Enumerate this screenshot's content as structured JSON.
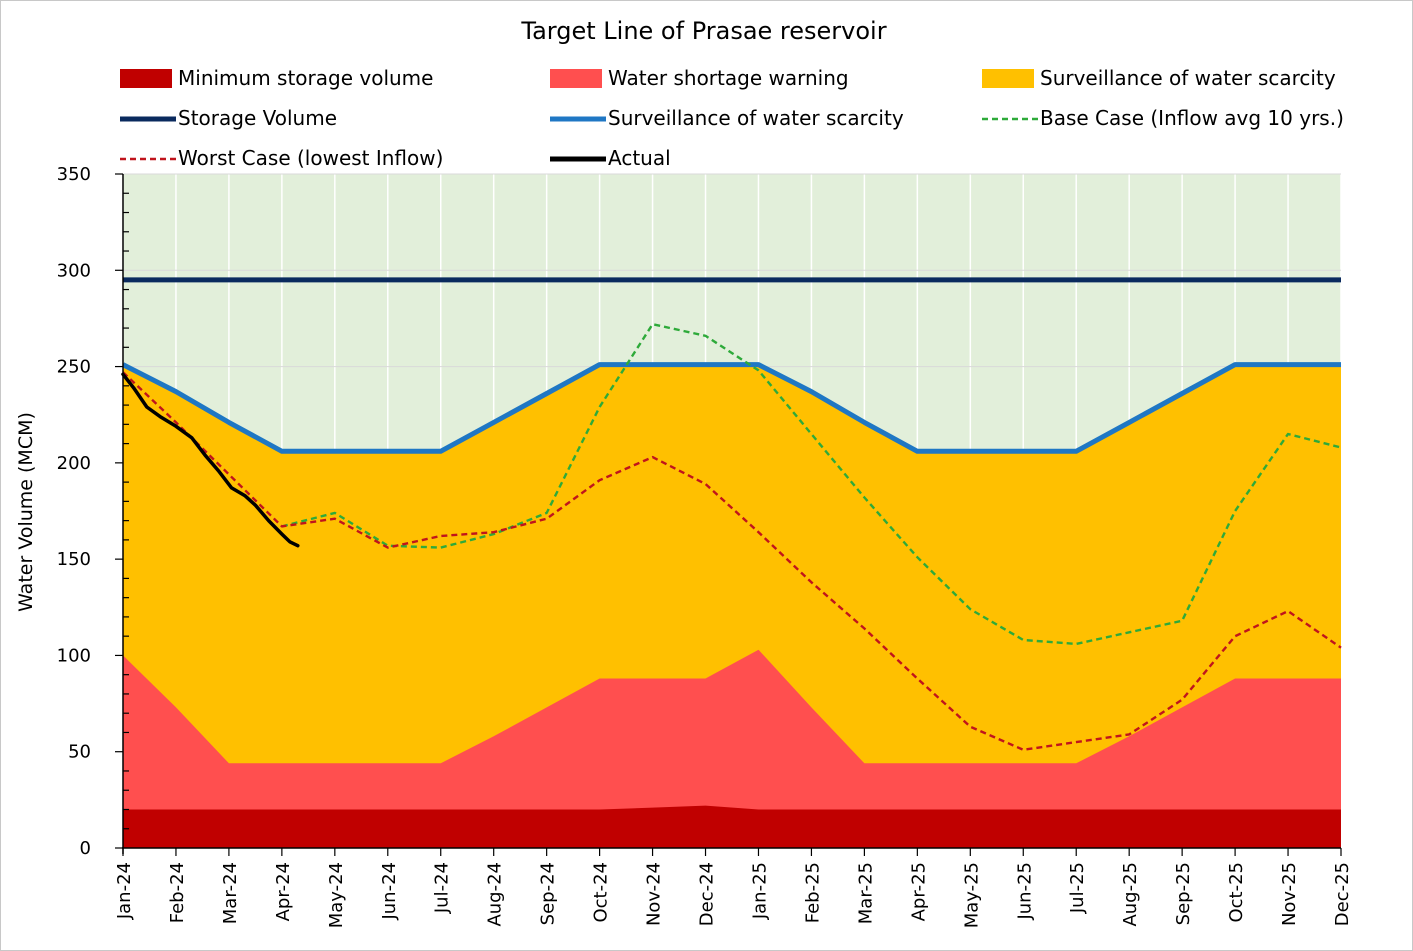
{
  "chart_data": {
    "type": "area",
    "title": "Target Line of Prasae reservoir",
    "xlabel": "",
    "ylabel": "Water Volume (MCM)",
    "ylim": [
      0,
      350
    ],
    "yticks": [
      "0",
      "50",
      "100",
      "150",
      "200",
      "250",
      "300",
      "350"
    ],
    "categories": [
      "Jan-24",
      "Feb-24",
      "Mar-24",
      "Apr-24",
      "May-24",
      "Jun-24",
      "Jul-24",
      "Aug-24",
      "Sep-24",
      "Oct-24",
      "Nov-24",
      "Dec-24",
      "Jan-25",
      "Feb-25",
      "Mar-25",
      "Apr-25",
      "May-25",
      "Jun-25",
      "Jul-25",
      "Aug-25",
      "Sep-25",
      "Oct-25",
      "Nov-25",
      "Dec-25"
    ],
    "background_zone_color": "#e2efda",
    "grid": "horizontal",
    "legend_position": "top",
    "legend": [
      {
        "label": "Minimum storage volume",
        "kind": "area",
        "color": "#c00000"
      },
      {
        "label": "Water shortage warning",
        "kind": "area",
        "color": "#ff4f4f"
      },
      {
        "label": "Surveillance of water scarcity",
        "kind": "area",
        "color": "#ffc000"
      },
      {
        "label": "Storage Volume",
        "kind": "line",
        "color": "#0a2a5e"
      },
      {
        "label": "Surveillance of water scarcity",
        "kind": "line",
        "color": "#1f77c4"
      },
      {
        "label": "Base Case (Inflow avg 10 yrs.)",
        "kind": "dashed",
        "color": "#2eaa3a"
      },
      {
        "label": "Worst Case (lowest Inflow)",
        "kind": "dashed",
        "color": "#c0141c"
      },
      {
        "label": "Actual",
        "kind": "line",
        "color": "#000000"
      }
    ],
    "series": [
      {
        "name": "Minimum storage volume",
        "type": "area",
        "color": "#c00000",
        "values": [
          20,
          20,
          20,
          20,
          20,
          20,
          20,
          20,
          20,
          20,
          21,
          22,
          20,
          20,
          20,
          20,
          20,
          20,
          20,
          20,
          20,
          20,
          20,
          20
        ]
      },
      {
        "name": "Water shortage warning",
        "type": "area",
        "color": "#ff4f4f",
        "values": [
          100,
          73,
          44,
          44,
          44,
          44,
          44,
          58,
          73,
          88,
          88,
          88,
          103,
          73,
          44,
          44,
          44,
          44,
          44,
          58,
          73,
          88,
          88,
          88
        ]
      },
      {
        "name": "Surveillance of water scarcity",
        "type": "area",
        "color": "#ffc000",
        "values": [
          251,
          237,
          221,
          206,
          206,
          206,
          206,
          221,
          236,
          251,
          251,
          251,
          251,
          237,
          221,
          206,
          206,
          206,
          206,
          221,
          236,
          251,
          251,
          251
        ]
      },
      {
        "name": "Storage Volume",
        "type": "line",
        "color": "#0a2a5e",
        "values": [
          295,
          295,
          295,
          295,
          295,
          295,
          295,
          295,
          295,
          295,
          295,
          295,
          295,
          295,
          295,
          295,
          295,
          295,
          295,
          295,
          295,
          295,
          295,
          295
        ]
      },
      {
        "name": "Surveillance of water scarcity",
        "type": "line",
        "color": "#1f77c4",
        "values": [
          251,
          237,
          221,
          206,
          206,
          206,
          206,
          221,
          236,
          251,
          251,
          251,
          251,
          237,
          221,
          206,
          206,
          206,
          206,
          221,
          236,
          251,
          251,
          251
        ]
      },
      {
        "name": "Base Case (Inflow avg 10 yrs.)",
        "type": "dashed",
        "color": "#2eaa3a",
        "x": [
          3,
          4,
          5,
          6,
          7,
          8,
          9,
          10,
          11,
          12,
          13,
          14,
          15,
          16,
          17,
          18,
          19,
          20,
          21,
          22,
          23
        ],
        "values": [
          167,
          174,
          157,
          156,
          163,
          174,
          229,
          272,
          266,
          248,
          215,
          182,
          151,
          124,
          108,
          106,
          112,
          118,
          175,
          215,
          208
        ]
      },
      {
        "name": "Worst Case (lowest Inflow)",
        "type": "dashed",
        "color": "#c0141c",
        "x": [
          0,
          1,
          2,
          3,
          4,
          5,
          6,
          7,
          8,
          9,
          10,
          11,
          12,
          13,
          14,
          15,
          16,
          17,
          18,
          19,
          20,
          21,
          22,
          23
        ],
        "values": [
          247,
          221,
          194,
          167,
          171,
          156,
          162,
          164,
          171,
          191,
          203,
          189,
          164,
          138,
          114,
          88,
          63,
          51,
          55,
          59,
          77,
          110,
          123,
          104
        ]
      },
      {
        "name": "Actual",
        "type": "line",
        "color": "#000000",
        "x": [
          0,
          0.2,
          0.45,
          0.7,
          1,
          1.3,
          1.55,
          1.8,
          2.05,
          2.3,
          2.5,
          2.75,
          3,
          3.15,
          3.3
        ],
        "values": [
          246,
          239,
          229,
          224,
          219,
          213,
          204,
          196,
          187,
          183,
          178,
          170,
          163,
          159,
          157
        ]
      }
    ]
  }
}
